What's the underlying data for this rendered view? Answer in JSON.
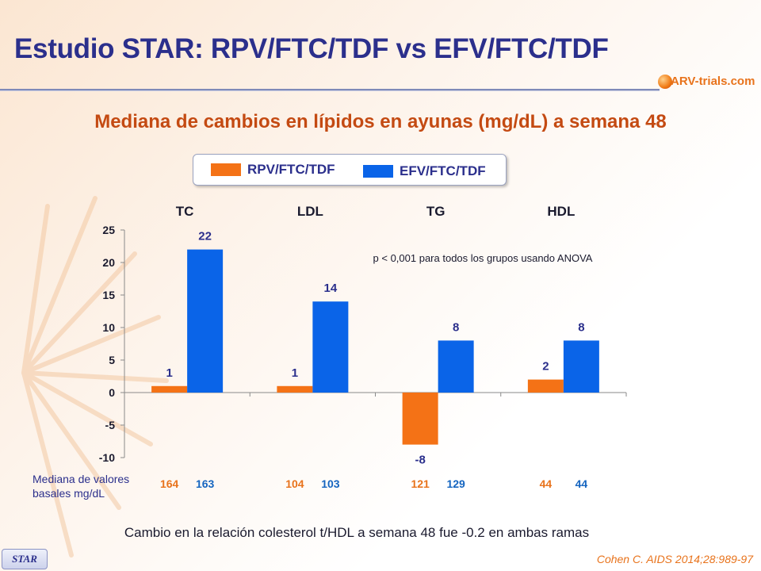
{
  "slide_title": "Estudio STAR: RPV/FTC/TDF vs EFV/FTC/TDF",
  "logo": {
    "icon": "arv-trials-logo-icon",
    "text": "ARV-trials.com"
  },
  "colors": {
    "rpv": "#f47216",
    "efv": "#0a64e8",
    "title": "#2b2f8c",
    "accent": "#c44a12"
  },
  "chart_data": {
    "type": "bar",
    "title": "Mediana de cambios en lípidos en ayunas (mg/dL) a semana 48",
    "categories": [
      "TC",
      "LDL",
      "TG",
      "HDL"
    ],
    "series": [
      {
        "name": "RPV/FTC/TDF",
        "values": [
          1,
          1,
          -8,
          2
        ],
        "baseline": [
          164,
          104,
          121,
          44
        ]
      },
      {
        "name": "EFV/FTC/TDF",
        "values": [
          22,
          14,
          8,
          8
        ],
        "baseline": [
          163,
          103,
          129,
          44
        ]
      }
    ],
    "y_ticks": [
      25,
      20,
      15,
      10,
      5,
      0,
      -5,
      -10
    ],
    "ylim": [
      -10,
      25
    ],
    "annotation": "p < 0,001 para todos los grupos usando ANOVA",
    "baseline_label": "Mediana de valores basales mg/dL",
    "legend_position": "top",
    "grid": false
  },
  "footnote": "Cambio en la relación colesterol t/HDL a semana 48 fue -0.2 en ambas ramas",
  "badge": "STAR",
  "citation": "Cohen C. AIDS 2014;28:989-97"
}
